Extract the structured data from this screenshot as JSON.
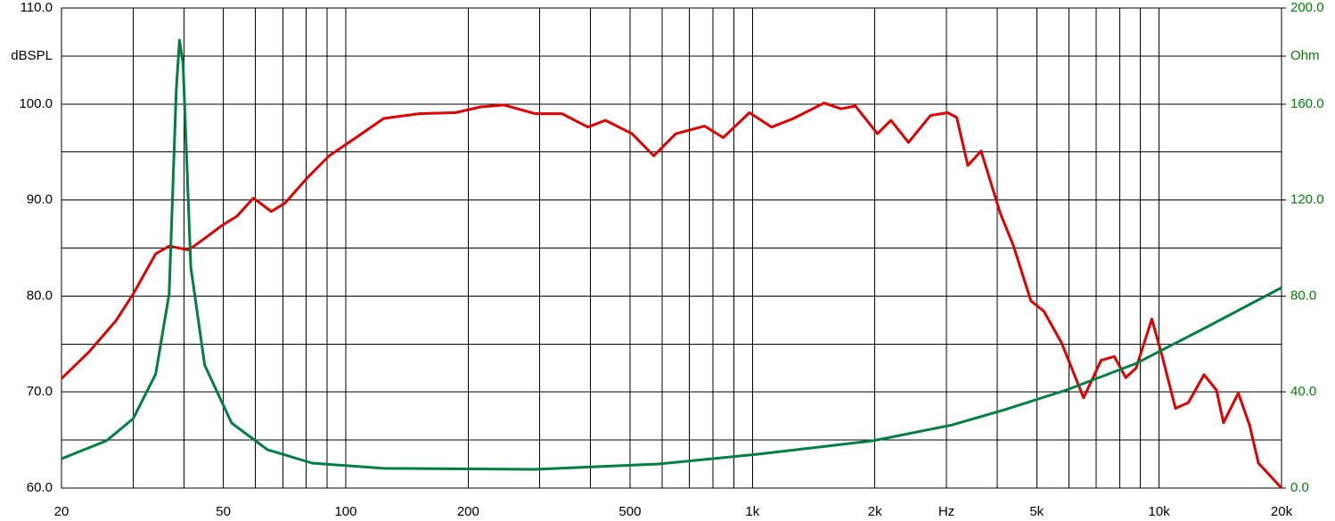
{
  "chart_data": {
    "type": "line",
    "xscale": "log",
    "grid": true,
    "xlim": [
      20,
      20000
    ],
    "ylim": [
      60,
      110
    ],
    "y2lim": [
      0,
      200
    ],
    "xticks": [
      20,
      50,
      100,
      200,
      500,
      {
        "value": 1000,
        "label": "1k"
      },
      {
        "value": 2000,
        "label": "2k"
      },
      {
        "value": 3000,
        "label": "Hz"
      },
      {
        "value": 5000,
        "label": "5k"
      },
      {
        "value": 10000,
        "label": "10k"
      },
      {
        "value": 20000,
        "label": "20k"
      }
    ],
    "xminor": [
      30,
      40,
      60,
      70,
      80,
      90,
      300,
      400,
      600,
      700,
      800,
      900,
      4000,
      6000,
      7000,
      8000,
      9000
    ],
    "yticks": [
      {
        "value": 110,
        "label": "110.0"
      },
      {
        "value": 105,
        "label": "dBSPL"
      },
      {
        "value": 100,
        "label": "100.0"
      },
      {
        "value": 90,
        "label": "90.0"
      },
      {
        "value": 80,
        "label": "80.0"
      },
      {
        "value": 70,
        "label": "70.0"
      },
      {
        "value": 60,
        "label": "60.0"
      }
    ],
    "yminor": [
      95,
      85,
      75,
      65
    ],
    "y2ticks": [
      {
        "value": 200,
        "label": "200.0"
      },
      {
        "value": 180,
        "label": "Ohm"
      },
      {
        "value": 160,
        "label": "160.0"
      },
      {
        "value": 120,
        "label": "120.0"
      },
      {
        "value": 80,
        "label": "80.0"
      },
      {
        "value": 40,
        "label": "40.0"
      },
      {
        "value": 0,
        "label": "0.0"
      }
    ],
    "y2color": "#008000",
    "series": [
      {
        "color": "#e00000",
        "axis": "y",
        "x": [
          20,
          23.4,
          27.2,
          30,
          34.1,
          36.8,
          41.1,
          45,
          49.8,
          54,
          59.3,
          65.6,
          71,
          80.4,
          91,
          106,
          124,
          152,
          186,
          215,
          245,
          292,
          340,
          394,
          435,
          506,
          572,
          648,
          763,
          848,
          983,
          1115,
          1262,
          1500,
          1653,
          1791,
          2030,
          2190,
          2420,
          2740,
          3020,
          3180,
          3385,
          3650,
          4070,
          4380,
          4840,
          5210,
          5760,
          6520,
          7200,
          7760,
          8280,
          8780,
          9600,
          10180,
          10970,
          11800,
          12900,
          13840,
          14400,
          15660,
          16700,
          17550,
          20000
        ],
        "values": [
          71.4,
          74.2,
          77.4,
          80.2,
          84.4,
          85.2,
          84.8,
          86,
          87.4,
          88.3,
          90.2,
          88.8,
          89.7,
          92.3,
          94.6,
          96.5,
          98.5,
          99,
          99.1,
          99.7,
          99.9,
          99,
          99,
          97.6,
          98.3,
          96.9,
          94.6,
          96.9,
          97.7,
          96.5,
          99.1,
          97.6,
          98.5,
          100.1,
          99.5,
          99.8,
          96.9,
          98.3,
          96,
          98.8,
          99.1,
          98.6,
          93.6,
          95.1,
          88.6,
          85.3,
          79.5,
          78.4,
          75.1,
          69.4,
          73.3,
          73.7,
          71.5,
          72.5,
          77.6,
          73.7,
          68.3,
          68.9,
          71.8,
          70.2,
          66.8,
          69.9,
          66.5,
          62.6,
          60
        ]
      },
      {
        "color": "#008040",
        "axis": "y2",
        "x": [
          20,
          25.8,
          30,
          34.1,
          36.8,
          38.3,
          39,
          39.8,
          41.6,
          45,
          52.4,
          64.2,
          82.7,
          124,
          292,
          587,
          1030,
          1980,
          3100,
          4180,
          5910,
          8780,
          13000,
          20000
        ],
        "values": [
          12.2,
          19.7,
          28.9,
          47.5,
          80.9,
          166,
          186.6,
          177,
          92,
          51.2,
          27.1,
          16,
          10.4,
          8.2,
          7.8,
          10,
          14.1,
          19.7,
          26.3,
          32.7,
          40.8,
          51.9,
          66.8,
          83.5
        ]
      }
    ]
  }
}
